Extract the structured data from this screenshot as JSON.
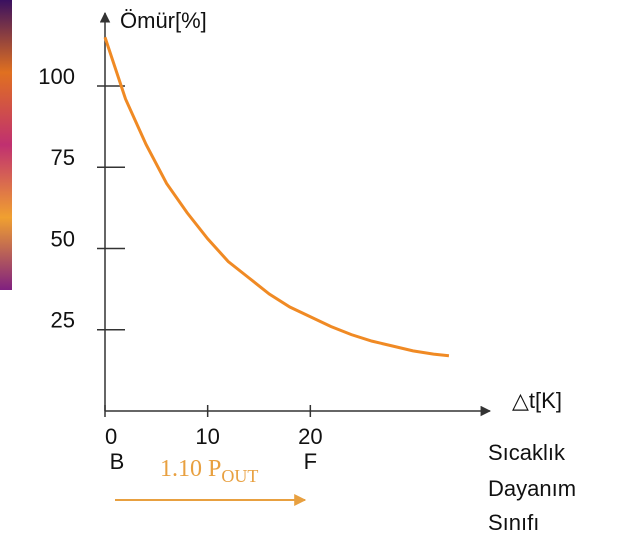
{
  "chart_data": {
    "type": "line",
    "y_label": "Ömür[%]",
    "x_label": "△t[K]",
    "x": [
      0,
      2,
      4,
      6,
      8,
      10,
      12,
      14,
      16,
      18,
      20,
      22,
      24,
      26,
      28,
      30,
      32,
      33.5
    ],
    "series": [
      {
        "color": "#f08a24",
        "values": [
          115,
          96,
          82,
          70,
          61,
          53,
          46,
          41,
          36,
          32,
          29,
          26,
          23.5,
          21.5,
          20,
          18.5,
          17.5,
          17
        ]
      }
    ],
    "xlim": [
      0,
      37.5
    ],
    "ylim": [
      0,
      120
    ],
    "xticks": [
      0,
      10,
      20
    ],
    "yticks": [
      25,
      50,
      75,
      100
    ],
    "class_labels": [
      {
        "x": 0,
        "label": "B"
      },
      {
        "x": 20,
        "label": "F"
      }
    ],
    "class_title": [
      "Sıcaklık",
      "Dayanım",
      "Sınıfı"
    ],
    "annotation": {
      "text": "1.10 P",
      "subscript": "OUT",
      "color": "#e8a040"
    }
  }
}
